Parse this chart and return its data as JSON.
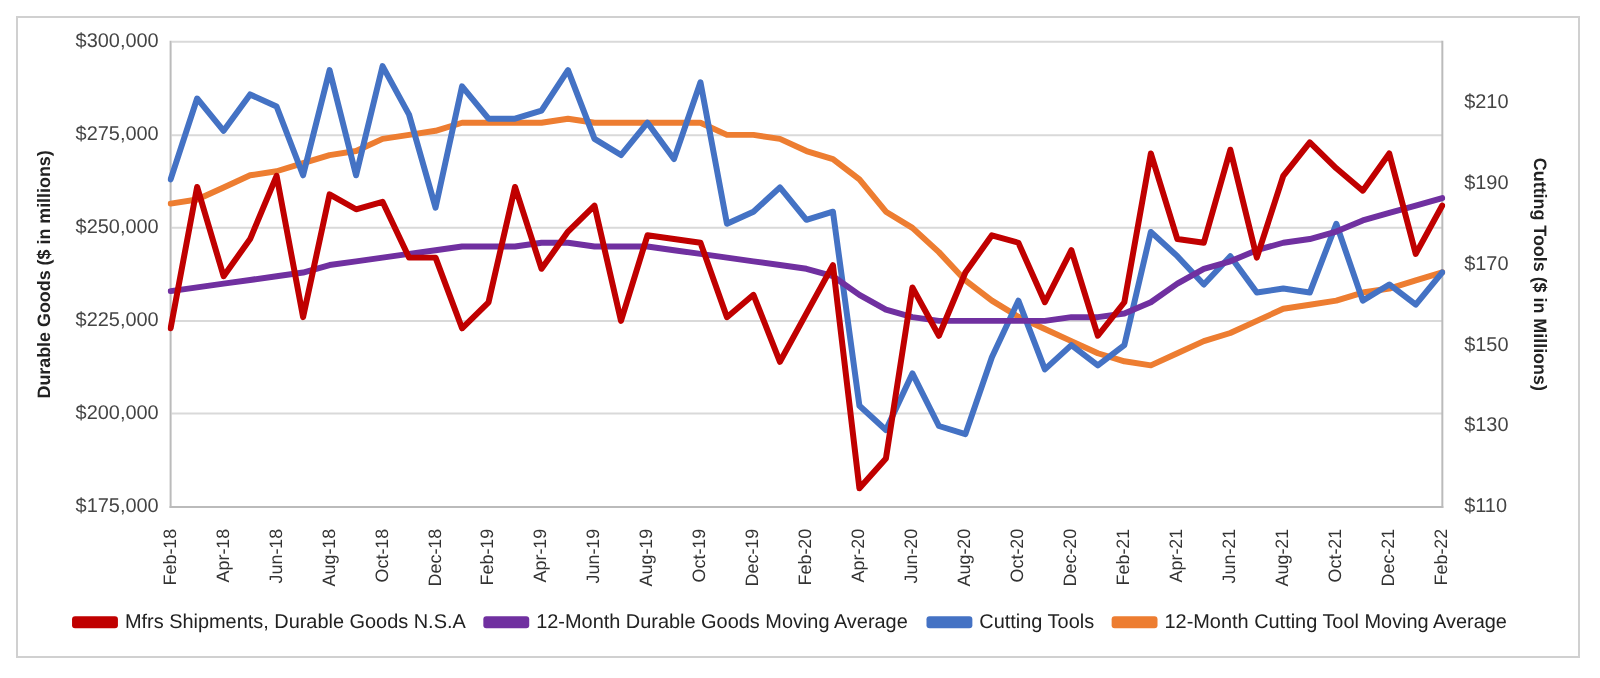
{
  "chart_data": {
    "type": "line",
    "ylabel": "Durable Goods ($ in millions)",
    "y2label": "Cutting Tools ($ in Millions)",
    "categories": [
      "Feb-18",
      null,
      "Apr-18",
      null,
      "Jun-18",
      null,
      "Aug-18",
      null,
      "Oct-18",
      null,
      "Dec-18",
      null,
      "Feb-19",
      null,
      "Apr-19",
      null,
      "Jun-19",
      null,
      "Aug-19",
      null,
      "Oct-19",
      null,
      "Dec-19",
      null,
      "Feb-20",
      null,
      "Apr-20",
      null,
      "Jun-20",
      null,
      "Aug-20",
      null,
      "Oct-20",
      null,
      "Dec-20",
      null,
      "Feb-21",
      null,
      "Apr-21",
      null,
      "Jun-21",
      null,
      "Aug-21",
      null,
      "Oct-21",
      null,
      "Dec-21",
      null,
      "Feb-22"
    ],
    "series": [
      {
        "name": "Mfrs Shipments, Durable Goods N.S.A",
        "color": "#c00000",
        "values": [
          223000,
          261000,
          237000,
          247000,
          264000,
          226000,
          259000,
          255000,
          257000,
          242000,
          242000,
          223000,
          230000,
          261000,
          239000,
          249000,
          256000,
          225000,
          248000,
          247000,
          246000,
          226000,
          232000,
          214000,
          227000,
          240000,
          180000,
          188000,
          234000,
          221000,
          238000,
          248000,
          246000,
          230000,
          244000,
          221000,
          230000,
          270000,
          247000,
          246000,
          271000,
          242000,
          264000,
          273000,
          266000,
          260000,
          270000,
          243000,
          256000
        ]
      },
      {
        "name": "12-Month Durable Goods Moving Average",
        "color": "#7030a0",
        "values": [
          233000,
          234000,
          235000,
          236000,
          237000,
          238000,
          240000,
          241000,
          242000,
          243000,
          244000,
          245000,
          245000,
          245000,
          246000,
          246000,
          245000,
          245000,
          245000,
          244000,
          243000,
          242000,
          241000,
          240000,
          239000,
          237000,
          232000,
          228000,
          226000,
          225000,
          225000,
          225000,
          225000,
          225000,
          226000,
          226000,
          227000,
          230000,
          235000,
          239000,
          241000,
          244000,
          246000,
          247000,
          249000,
          252000,
          254000,
          256000,
          258000
        ]
      },
      {
        "name": "Cutting Tools",
        "color": "#4472c4",
        "axis": "y2",
        "values": [
          191,
          211,
          203,
          212,
          209,
          192,
          218,
          192,
          219,
          207,
          184,
          214,
          206,
          206,
          208,
          218,
          201,
          197,
          205,
          196,
          215,
          180,
          183,
          189,
          181,
          183,
          135,
          129,
          143,
          130,
          128,
          147,
          161,
          144,
          150,
          145,
          150,
          178,
          172,
          165,
          172,
          163,
          164,
          163,
          180,
          161,
          165,
          160,
          168
        ]
      },
      {
        "name": "12-Month Cutting Tool Moving Average",
        "color": "#ed7d31",
        "axis": "y2",
        "values": [
          185,
          186,
          189,
          192,
          193,
          195,
          197,
          198,
          201,
          202,
          203,
          205,
          205,
          205,
          205,
          206,
          205,
          205,
          205,
          205,
          205,
          202,
          202,
          201,
          198,
          196,
          191,
          183,
          179,
          173,
          166,
          161,
          157,
          154,
          151,
          148,
          146,
          145,
          148,
          151,
          153,
          156,
          159,
          160,
          161,
          163,
          164,
          166,
          168
        ]
      }
    ],
    "ylim": [
      175000,
      300000
    ],
    "yticks": [
      {
        "value": 175000,
        "label": "$175,000"
      },
      {
        "value": 200000,
        "label": "$200,000"
      },
      {
        "value": 225000,
        "label": "$225,000"
      },
      {
        "value": 250000,
        "label": "$250,000"
      },
      {
        "value": 275000,
        "label": "$275,000"
      },
      {
        "value": 300000,
        "label": "$300,000"
      }
    ],
    "y2lim": [
      110,
      225
    ],
    "y2ticks": [
      {
        "value": 110,
        "label": "$110"
      },
      {
        "value": 130,
        "label": "$130"
      },
      {
        "value": 150,
        "label": "$150"
      },
      {
        "value": 170,
        "label": "$170"
      },
      {
        "value": 190,
        "label": "$190"
      },
      {
        "value": 210,
        "label": "$210"
      }
    ],
    "grid": "y",
    "legend": "bottom",
    "marker": "none",
    "line_style": "solid"
  }
}
